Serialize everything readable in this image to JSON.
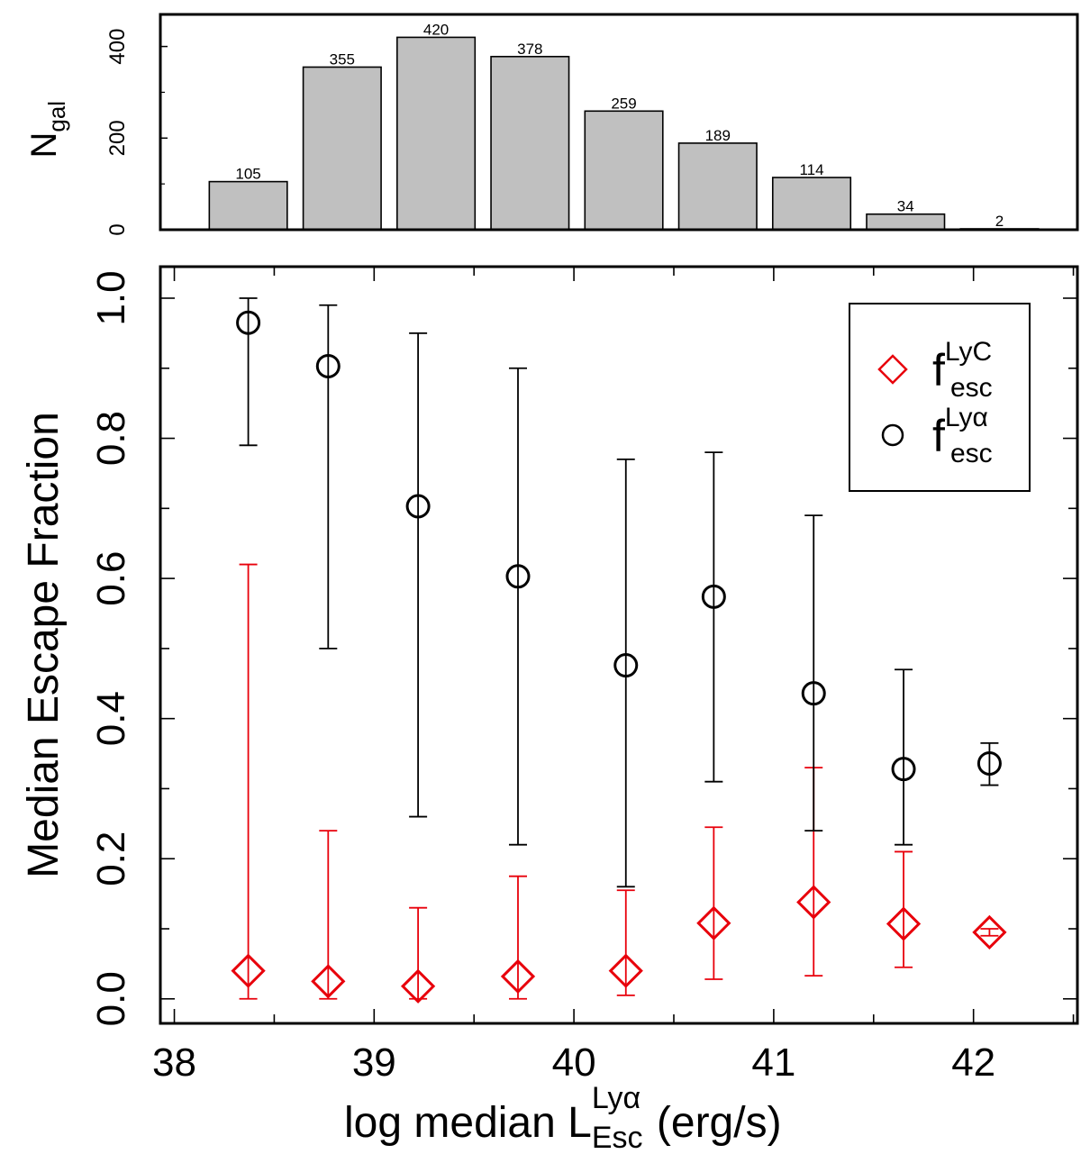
{
  "chart_data": [
    {
      "type": "bar",
      "panel": "top",
      "ylabel": "N",
      "ylabel_sub": "gal",
      "ylim": [
        0,
        470
      ],
      "yticks": [
        0,
        200,
        400
      ],
      "xlim": [
        37.93,
        42.52
      ],
      "bins": [
        {
          "center": 38.37,
          "width": 0.39,
          "count": 105
        },
        {
          "center": 38.84,
          "width": 0.39,
          "count": 355
        },
        {
          "center": 39.31,
          "width": 0.39,
          "count": 420
        },
        {
          "center": 39.78,
          "width": 0.39,
          "count": 378
        },
        {
          "center": 40.25,
          "width": 0.39,
          "count": 259
        },
        {
          "center": 40.72,
          "width": 0.39,
          "count": 189
        },
        {
          "center": 41.19,
          "width": 0.39,
          "count": 114
        },
        {
          "center": 41.66,
          "width": 0.39,
          "count": 34
        },
        {
          "center": 42.13,
          "width": 0.39,
          "count": 2
        }
      ]
    },
    {
      "type": "scatter",
      "panel": "bottom",
      "ylabel": "Median Escape Fraction",
      "xlabel_prefix": "log median L",
      "xlabel_sup": "Lyα",
      "xlabel_sub": "Esc",
      "xlabel_suffix": " (erg/s)",
      "xlim": [
        37.93,
        42.52
      ],
      "ylim": [
        -0.035,
        1.045
      ],
      "xticks": [
        38,
        39,
        40,
        41,
        42
      ],
      "xticklabels": [
        "38",
        "39",
        "40",
        "41",
        "42"
      ],
      "yticks": [
        0.0,
        0.2,
        0.4,
        0.6,
        0.8,
        1.0
      ],
      "yticklabels": [
        "0.0",
        "0.2",
        "0.4",
        "0.6",
        "0.8",
        "1.0"
      ],
      "series": [
        {
          "name": "f_esc^LyC",
          "legend_main": "f",
          "legend_sup": "LyC",
          "legend_sub": "esc",
          "marker": "diamond",
          "color": "#e8000b",
          "points": [
            {
              "x": 38.37,
              "y": 0.04,
              "lo": 0.0,
              "hi": 0.62
            },
            {
              "x": 38.77,
              "y": 0.025,
              "lo": 0.0,
              "hi": 0.24
            },
            {
              "x": 39.22,
              "y": 0.018,
              "lo": 0.0,
              "hi": 0.13
            },
            {
              "x": 39.72,
              "y": 0.032,
              "lo": 0.0,
              "hi": 0.175
            },
            {
              "x": 40.26,
              "y": 0.04,
              "lo": 0.005,
              "hi": 0.155
            },
            {
              "x": 40.7,
              "y": 0.108,
              "lo": 0.028,
              "hi": 0.245
            },
            {
              "x": 41.2,
              "y": 0.138,
              "lo": 0.033,
              "hi": 0.33
            },
            {
              "x": 41.65,
              "y": 0.107,
              "lo": 0.045,
              "hi": 0.21
            },
            {
              "x": 42.08,
              "y": 0.095,
              "lo": 0.09,
              "hi": 0.1
            }
          ]
        },
        {
          "name": "f_esc^Lyα",
          "legend_main": "f",
          "legend_sup": "Lyα",
          "legend_sub": "esc",
          "marker": "circle",
          "color": "#000000",
          "points": [
            {
              "x": 38.37,
              "y": 0.965,
              "lo": 0.79,
              "hi": 1.0
            },
            {
              "x": 38.77,
              "y": 0.903,
              "lo": 0.5,
              "hi": 0.99
            },
            {
              "x": 39.22,
              "y": 0.703,
              "lo": 0.26,
              "hi": 0.95
            },
            {
              "x": 39.72,
              "y": 0.603,
              "lo": 0.22,
              "hi": 0.9
            },
            {
              "x": 40.26,
              "y": 0.476,
              "lo": 0.16,
              "hi": 0.77
            },
            {
              "x": 40.7,
              "y": 0.574,
              "lo": 0.31,
              "hi": 0.78
            },
            {
              "x": 41.2,
              "y": 0.436,
              "lo": 0.24,
              "hi": 0.69
            },
            {
              "x": 41.65,
              "y": 0.328,
              "lo": 0.22,
              "hi": 0.47
            },
            {
              "x": 42.08,
              "y": 0.336,
              "lo": 0.305,
              "hi": 0.365
            }
          ]
        }
      ]
    }
  ]
}
